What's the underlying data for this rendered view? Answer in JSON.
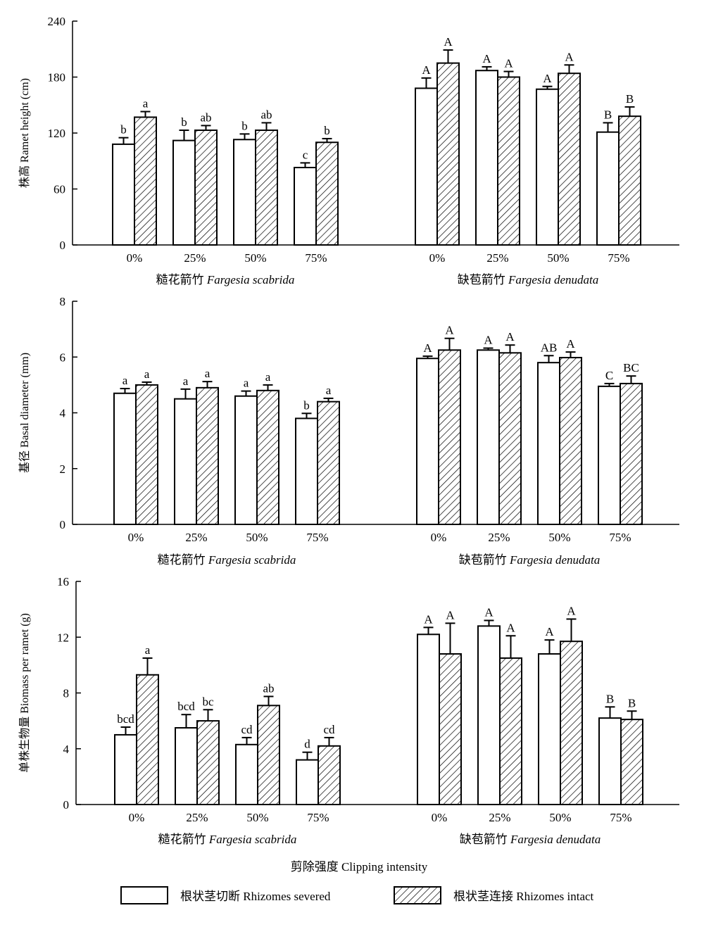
{
  "chart_data": [
    {
      "type": "bar",
      "ylabel": "株高 Ramet height (cm)",
      "ylim": [
        0,
        240
      ],
      "yticks": [
        0,
        60,
        120,
        180,
        240
      ],
      "groups": [
        {
          "label_cn": "糙花箭竹",
          "label_latin": "Fargesia scabrida",
          "categories": [
            "0%",
            "25%",
            "50%",
            "75%"
          ],
          "severed": {
            "values": [
              108,
              112,
              113,
              83
            ],
            "errors": [
              7,
              11,
              6,
              5
            ],
            "sig": [
              "b",
              "b",
              "b",
              "c"
            ]
          },
          "intact": {
            "values": [
              137,
              123,
              123,
              110
            ],
            "errors": [
              6,
              5,
              8,
              4
            ],
            "sig": [
              "a",
              "ab",
              "ab",
              "b"
            ]
          }
        },
        {
          "label_cn": "缺苞箭竹",
          "label_latin": "Fargesia denudata",
          "categories": [
            "0%",
            "25%",
            "50%",
            "75%"
          ],
          "severed": {
            "values": [
              168,
              187,
              167,
              121
            ],
            "errors": [
              11,
              4,
              3,
              10
            ],
            "sig": [
              "A",
              "A",
              "A",
              "B"
            ]
          },
          "intact": {
            "values": [
              195,
              180,
              184,
              138
            ],
            "errors": [
              14,
              6,
              9,
              10
            ],
            "sig": [
              "A",
              "A",
              "A",
              "B"
            ]
          }
        }
      ]
    },
    {
      "type": "bar",
      "ylabel": "基径 Basal diameter (mm)",
      "ylim": [
        0,
        8
      ],
      "yticks": [
        0,
        2,
        4,
        6,
        8
      ],
      "groups": [
        {
          "label_cn": "糙花箭竹",
          "label_latin": "Fargesia scabrida",
          "categories": [
            "0%",
            "25%",
            "50%",
            "75%"
          ],
          "severed": {
            "values": [
              4.7,
              4.5,
              4.6,
              3.8
            ],
            "errors": [
              0.17,
              0.35,
              0.18,
              0.18
            ],
            "sig": [
              "a",
              "a",
              "a",
              "b"
            ]
          },
          "intact": {
            "values": [
              5.0,
              4.9,
              4.8,
              4.4
            ],
            "errors": [
              0.1,
              0.22,
              0.2,
              0.12
            ],
            "sig": [
              "a",
              "a",
              "a",
              "a"
            ]
          }
        },
        {
          "label_cn": "缺苞箭竹",
          "label_latin": "Fargesia denudata",
          "categories": [
            "0%",
            "25%",
            "50%",
            "75%"
          ],
          "severed": {
            "values": [
              5.95,
              6.25,
              5.8,
              4.95
            ],
            "errors": [
              0.08,
              0.07,
              0.25,
              0.1
            ],
            "sig": [
              "A",
              "A",
              "AB",
              "C"
            ]
          },
          "intact": {
            "values": [
              6.25,
              6.15,
              5.98,
              5.05
            ],
            "errors": [
              0.42,
              0.28,
              0.2,
              0.27
            ],
            "sig": [
              "A",
              "A",
              "A",
              "BC"
            ]
          }
        }
      ]
    },
    {
      "type": "bar",
      "ylabel": "单株生物量 Biomass per ramet (g)",
      "ylim": [
        0,
        16
      ],
      "yticks": [
        0,
        4,
        8,
        12,
        16
      ],
      "groups": [
        {
          "label_cn": "糙花箭竹",
          "label_latin": "Fargesia scabrida",
          "categories": [
            "0%",
            "25%",
            "50%",
            "75%"
          ],
          "severed": {
            "values": [
              5.0,
              5.5,
              4.3,
              3.2
            ],
            "errors": [
              0.55,
              0.95,
              0.5,
              0.55
            ],
            "sig": [
              "bcd",
              "bcd",
              "cd",
              "d"
            ]
          },
          "intact": {
            "values": [
              9.3,
              6.0,
              7.1,
              4.2
            ],
            "errors": [
              1.2,
              0.8,
              0.65,
              0.6
            ],
            "sig": [
              "a",
              "bc",
              "ab",
              "cd"
            ]
          }
        },
        {
          "label_cn": "缺苞箭竹",
          "label_latin": "Fargesia denudata",
          "categories": [
            "0%",
            "25%",
            "50%",
            "75%"
          ],
          "severed": {
            "values": [
              12.2,
              12.8,
              10.8,
              6.2
            ],
            "errors": [
              0.5,
              0.4,
              1.0,
              0.8
            ],
            "sig": [
              "A",
              "A",
              "A",
              "B"
            ]
          },
          "intact": {
            "values": [
              10.8,
              10.5,
              11.7,
              6.1
            ],
            "errors": [
              2.2,
              1.6,
              1.6,
              0.6
            ],
            "sig": [
              "A",
              "A",
              "A",
              "B"
            ]
          }
        }
      ]
    }
  ],
  "x_title": "剪除强度 Clipping intensity",
  "legend": {
    "severed": "根状茎切断 Rhizomes severed",
    "intact": "根状茎连接 Rhizomes intact"
  }
}
